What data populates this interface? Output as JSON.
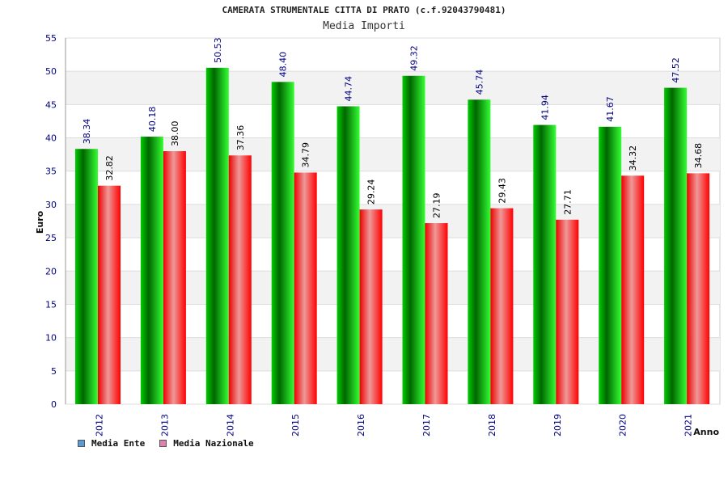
{
  "chart_data": {
    "type": "bar",
    "title": "CAMERATA STRUMENTALE CITTA DI PRATO (c.f.92043790481)",
    "subtitle": "Media Importi",
    "xlabel": "Anno",
    "ylabel": "Euro",
    "ylim": [
      0,
      55
    ],
    "yticks": [
      0,
      5,
      10,
      15,
      20,
      25,
      30,
      35,
      40,
      45,
      50,
      55
    ],
    "categories": [
      "2012",
      "2013",
      "2014",
      "2015",
      "2016",
      "2017",
      "2018",
      "2019",
      "2020",
      "2021"
    ],
    "series": [
      {
        "name": "Media Ente",
        "values": [
          38.34,
          40.18,
          50.53,
          48.4,
          44.74,
          49.32,
          45.74,
          41.94,
          41.67,
          47.52
        ],
        "labels": [
          "38.34",
          "40.18",
          "50.53",
          "48.40",
          "44.74",
          "49.32",
          "45.74",
          "41.94",
          "41.67",
          "47.52"
        ]
      },
      {
        "name": "Media Nazionale",
        "values": [
          32.82,
          38.0,
          37.36,
          34.79,
          29.24,
          27.19,
          29.43,
          27.71,
          34.32,
          34.68
        ],
        "labels": [
          "32.82",
          "38.00",
          "37.36",
          "34.79",
          "29.24",
          "27.19",
          "29.43",
          "27.71",
          "34.32",
          "34.68"
        ]
      }
    ],
    "grid": true,
    "legend": "bottom-left"
  },
  "legend_colors": {
    "ente": "#5b9bd5",
    "nazionale": "#e080b0"
  },
  "colors": {
    "ente_dark": "#006600",
    "ente_light": "#33ff33",
    "naz_dark": "#ee0000",
    "naz_light": "#ee9999",
    "axis_text": "#000080",
    "band": "#f2f2f2"
  }
}
